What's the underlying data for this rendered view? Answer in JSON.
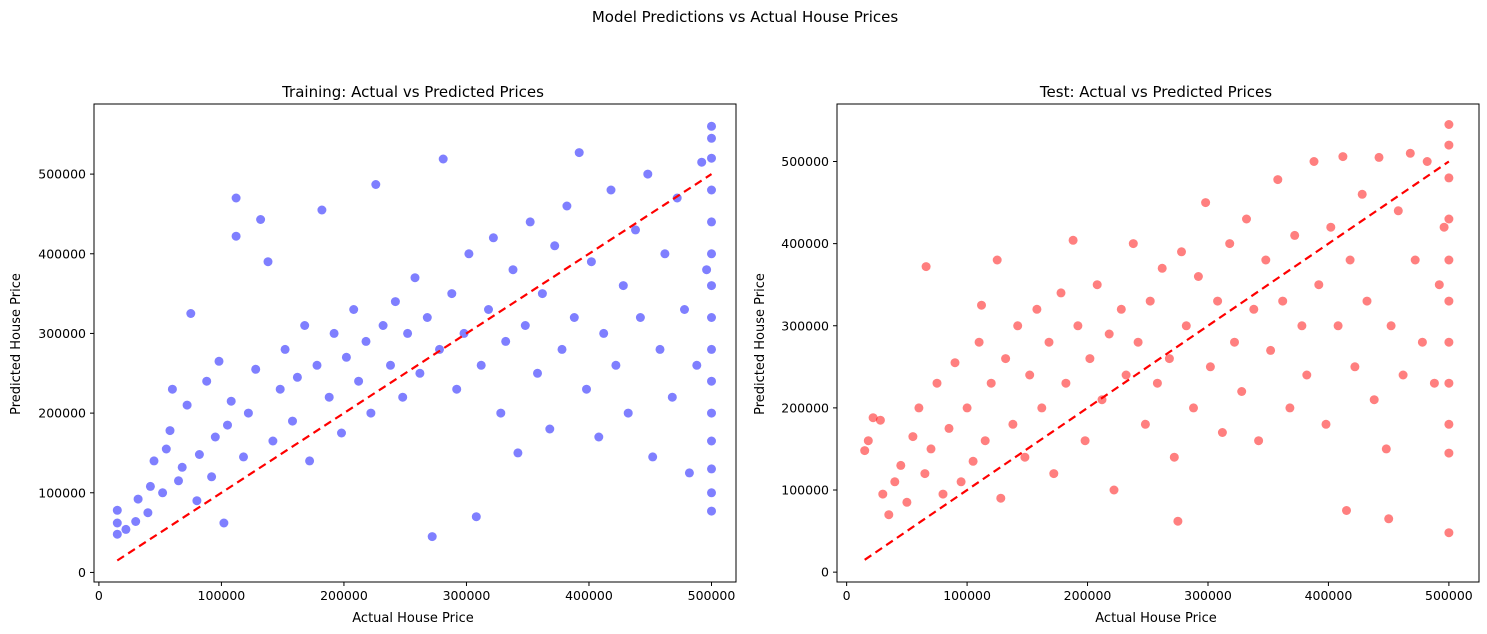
{
  "figure": {
    "suptitle": "Model Predictions vs Actual House Prices"
  },
  "chart_data": [
    {
      "type": "scatter",
      "title": "Training: Actual vs Predicted Prices",
      "xlabel": "Actual House Price",
      "ylabel": "Predicted House Price",
      "xlim": [
        -4000,
        520000
      ],
      "ylim": [
        -12000,
        588000
      ],
      "xticks": [
        0,
        100000,
        200000,
        300000,
        400000,
        500000
      ],
      "yticks": [
        0,
        100000,
        200000,
        300000,
        400000,
        500000
      ],
      "grid": false,
      "legend": "none",
      "point_color": "#0000ff",
      "point_alpha": 0.5,
      "reference_line": {
        "from": [
          15000,
          15000
        ],
        "to": [
          500000,
          500000
        ],
        "color": "#ff0000",
        "style": "dashed"
      },
      "points": [
        [
          15000,
          48000
        ],
        [
          15000,
          62000
        ],
        [
          15000,
          78000
        ],
        [
          22000,
          54000
        ],
        [
          30000,
          64000
        ],
        [
          32000,
          92000
        ],
        [
          40000,
          75000
        ],
        [
          42000,
          108000
        ],
        [
          45000,
          140000
        ],
        [
          52000,
          100000
        ],
        [
          55000,
          155000
        ],
        [
          58000,
          178000
        ],
        [
          60000,
          230000
        ],
        [
          65000,
          115000
        ],
        [
          68000,
          132000
        ],
        [
          72000,
          210000
        ],
        [
          75000,
          325000
        ],
        [
          80000,
          90000
        ],
        [
          82000,
          148000
        ],
        [
          88000,
          240000
        ],
        [
          92000,
          120000
        ],
        [
          95000,
          170000
        ],
        [
          98000,
          265000
        ],
        [
          102000,
          62000
        ],
        [
          105000,
          185000
        ],
        [
          108000,
          215000
        ],
        [
          112000,
          422000
        ],
        [
          112000,
          470000
        ],
        [
          118000,
          145000
        ],
        [
          122000,
          200000
        ],
        [
          128000,
          255000
        ],
        [
          132000,
          443000
        ],
        [
          138000,
          390000
        ],
        [
          142000,
          165000
        ],
        [
          148000,
          230000
        ],
        [
          152000,
          280000
        ],
        [
          158000,
          190000
        ],
        [
          162000,
          245000
        ],
        [
          168000,
          310000
        ],
        [
          172000,
          140000
        ],
        [
          178000,
          260000
        ],
        [
          182000,
          455000
        ],
        [
          188000,
          220000
        ],
        [
          192000,
          300000
        ],
        [
          198000,
          175000
        ],
        [
          202000,
          270000
        ],
        [
          208000,
          330000
        ],
        [
          212000,
          240000
        ],
        [
          218000,
          290000
        ],
        [
          222000,
          200000
        ],
        [
          226000,
          487000
        ],
        [
          232000,
          310000
        ],
        [
          238000,
          260000
        ],
        [
          242000,
          340000
        ],
        [
          248000,
          220000
        ],
        [
          252000,
          300000
        ],
        [
          258000,
          370000
        ],
        [
          262000,
          250000
        ],
        [
          268000,
          320000
        ],
        [
          272000,
          45000
        ],
        [
          278000,
          280000
        ],
        [
          281000,
          519000
        ],
        [
          288000,
          350000
        ],
        [
          292000,
          230000
        ],
        [
          298000,
          300000
        ],
        [
          302000,
          400000
        ],
        [
          308000,
          70000
        ],
        [
          312000,
          260000
        ],
        [
          318000,
          330000
        ],
        [
          322000,
          420000
        ],
        [
          328000,
          200000
        ],
        [
          332000,
          290000
        ],
        [
          338000,
          380000
        ],
        [
          342000,
          150000
        ],
        [
          348000,
          310000
        ],
        [
          352000,
          440000
        ],
        [
          358000,
          250000
        ],
        [
          362000,
          350000
        ],
        [
          368000,
          180000
        ],
        [
          372000,
          410000
        ],
        [
          378000,
          280000
        ],
        [
          382000,
          460000
        ],
        [
          388000,
          320000
        ],
        [
          392000,
          527000
        ],
        [
          398000,
          230000
        ],
        [
          402000,
          390000
        ],
        [
          408000,
          170000
        ],
        [
          412000,
          300000
        ],
        [
          418000,
          480000
        ],
        [
          422000,
          260000
        ],
        [
          428000,
          360000
        ],
        [
          432000,
          200000
        ],
        [
          438000,
          430000
        ],
        [
          442000,
          320000
        ],
        [
          448000,
          500000
        ],
        [
          452000,
          145000
        ],
        [
          458000,
          280000
        ],
        [
          462000,
          400000
        ],
        [
          468000,
          220000
        ],
        [
          472000,
          470000
        ],
        [
          478000,
          330000
        ],
        [
          482000,
          125000
        ],
        [
          488000,
          260000
        ],
        [
          492000,
          515000
        ],
        [
          496000,
          380000
        ],
        [
          500000,
          77000
        ],
        [
          500000,
          100000
        ],
        [
          500000,
          130000
        ],
        [
          500000,
          165000
        ],
        [
          500000,
          200000
        ],
        [
          500000,
          240000
        ],
        [
          500000,
          280000
        ],
        [
          500000,
          320000
        ],
        [
          500000,
          360000
        ],
        [
          500000,
          400000
        ],
        [
          500000,
          440000
        ],
        [
          500000,
          480000
        ],
        [
          500000,
          520000
        ],
        [
          500000,
          545000
        ],
        [
          500000,
          560000
        ]
      ]
    },
    {
      "type": "scatter",
      "title": "Test: Actual vs Predicted Prices",
      "xlabel": "Actual House Price",
      "ylabel": "Predicted House Price",
      "xlim": [
        -8000,
        525000
      ],
      "ylim": [
        -12000,
        570000
      ],
      "xticks": [
        0,
        100000,
        200000,
        300000,
        400000,
        500000
      ],
      "yticks": [
        0,
        100000,
        200000,
        300000,
        400000,
        500000
      ],
      "grid": false,
      "legend": "none",
      "point_color": "#ff0000",
      "point_alpha": 0.5,
      "reference_line": {
        "from": [
          15000,
          15000
        ],
        "to": [
          500000,
          500000
        ],
        "color": "#ff0000",
        "style": "dashed"
      },
      "points": [
        [
          15000,
          148000
        ],
        [
          18000,
          160000
        ],
        [
          22000,
          188000
        ],
        [
          28000,
          185000
        ],
        [
          30000,
          95000
        ],
        [
          35000,
          70000
        ],
        [
          40000,
          110000
        ],
        [
          45000,
          130000
        ],
        [
          50000,
          85000
        ],
        [
          55000,
          165000
        ],
        [
          60000,
          200000
        ],
        [
          65000,
          120000
        ],
        [
          66000,
          372000
        ],
        [
          70000,
          150000
        ],
        [
          75000,
          230000
        ],
        [
          80000,
          95000
        ],
        [
          85000,
          175000
        ],
        [
          90000,
          255000
        ],
        [
          95000,
          110000
        ],
        [
          100000,
          200000
        ],
        [
          105000,
          135000
        ],
        [
          110000,
          280000
        ],
        [
          112000,
          325000
        ],
        [
          115000,
          160000
        ],
        [
          120000,
          230000
        ],
        [
          125000,
          380000
        ],
        [
          128000,
          90000
        ],
        [
          132000,
          260000
        ],
        [
          138000,
          180000
        ],
        [
          142000,
          300000
        ],
        [
          148000,
          140000
        ],
        [
          152000,
          240000
        ],
        [
          158000,
          320000
        ],
        [
          162000,
          200000
        ],
        [
          168000,
          280000
        ],
        [
          172000,
          120000
        ],
        [
          178000,
          340000
        ],
        [
          182000,
          230000
        ],
        [
          188000,
          404000
        ],
        [
          192000,
          300000
        ],
        [
          198000,
          160000
        ],
        [
          202000,
          260000
        ],
        [
          208000,
          350000
        ],
        [
          212000,
          210000
        ],
        [
          218000,
          290000
        ],
        [
          222000,
          100000
        ],
        [
          228000,
          320000
        ],
        [
          232000,
          240000
        ],
        [
          238000,
          400000
        ],
        [
          242000,
          280000
        ],
        [
          248000,
          180000
        ],
        [
          252000,
          330000
        ],
        [
          258000,
          230000
        ],
        [
          262000,
          370000
        ],
        [
          268000,
          260000
        ],
        [
          272000,
          140000
        ],
        [
          275000,
          62000
        ],
        [
          278000,
          390000
        ],
        [
          282000,
          300000
        ],
        [
          288000,
          200000
        ],
        [
          292000,
          360000
        ],
        [
          298000,
          450000
        ],
        [
          302000,
          250000
        ],
        [
          308000,
          330000
        ],
        [
          312000,
          170000
        ],
        [
          318000,
          400000
        ],
        [
          322000,
          280000
        ],
        [
          328000,
          220000
        ],
        [
          332000,
          430000
        ],
        [
          338000,
          320000
        ],
        [
          342000,
          160000
        ],
        [
          348000,
          380000
        ],
        [
          352000,
          270000
        ],
        [
          358000,
          478000
        ],
        [
          362000,
          330000
        ],
        [
          368000,
          200000
        ],
        [
          372000,
          410000
        ],
        [
          378000,
          300000
        ],
        [
          382000,
          240000
        ],
        [
          388000,
          500000
        ],
        [
          392000,
          350000
        ],
        [
          398000,
          180000
        ],
        [
          402000,
          420000
        ],
        [
          408000,
          300000
        ],
        [
          412000,
          506000
        ],
        [
          415000,
          75000
        ],
        [
          418000,
          380000
        ],
        [
          422000,
          250000
        ],
        [
          428000,
          460000
        ],
        [
          432000,
          330000
        ],
        [
          438000,
          210000
        ],
        [
          442000,
          505000
        ],
        [
          448000,
          150000
        ],
        [
          450000,
          65000
        ],
        [
          452000,
          300000
        ],
        [
          458000,
          440000
        ],
        [
          462000,
          240000
        ],
        [
          468000,
          510000
        ],
        [
          472000,
          380000
        ],
        [
          478000,
          280000
        ],
        [
          482000,
          500000
        ],
        [
          488000,
          230000
        ],
        [
          492000,
          350000
        ],
        [
          496000,
          420000
        ],
        [
          500000,
          48000
        ],
        [
          500000,
          145000
        ],
        [
          500000,
          180000
        ],
        [
          500000,
          230000
        ],
        [
          500000,
          280000
        ],
        [
          500000,
          330000
        ],
        [
          500000,
          380000
        ],
        [
          500000,
          430000
        ],
        [
          500000,
          480000
        ],
        [
          500000,
          520000
        ],
        [
          500000,
          545000
        ]
      ]
    }
  ]
}
